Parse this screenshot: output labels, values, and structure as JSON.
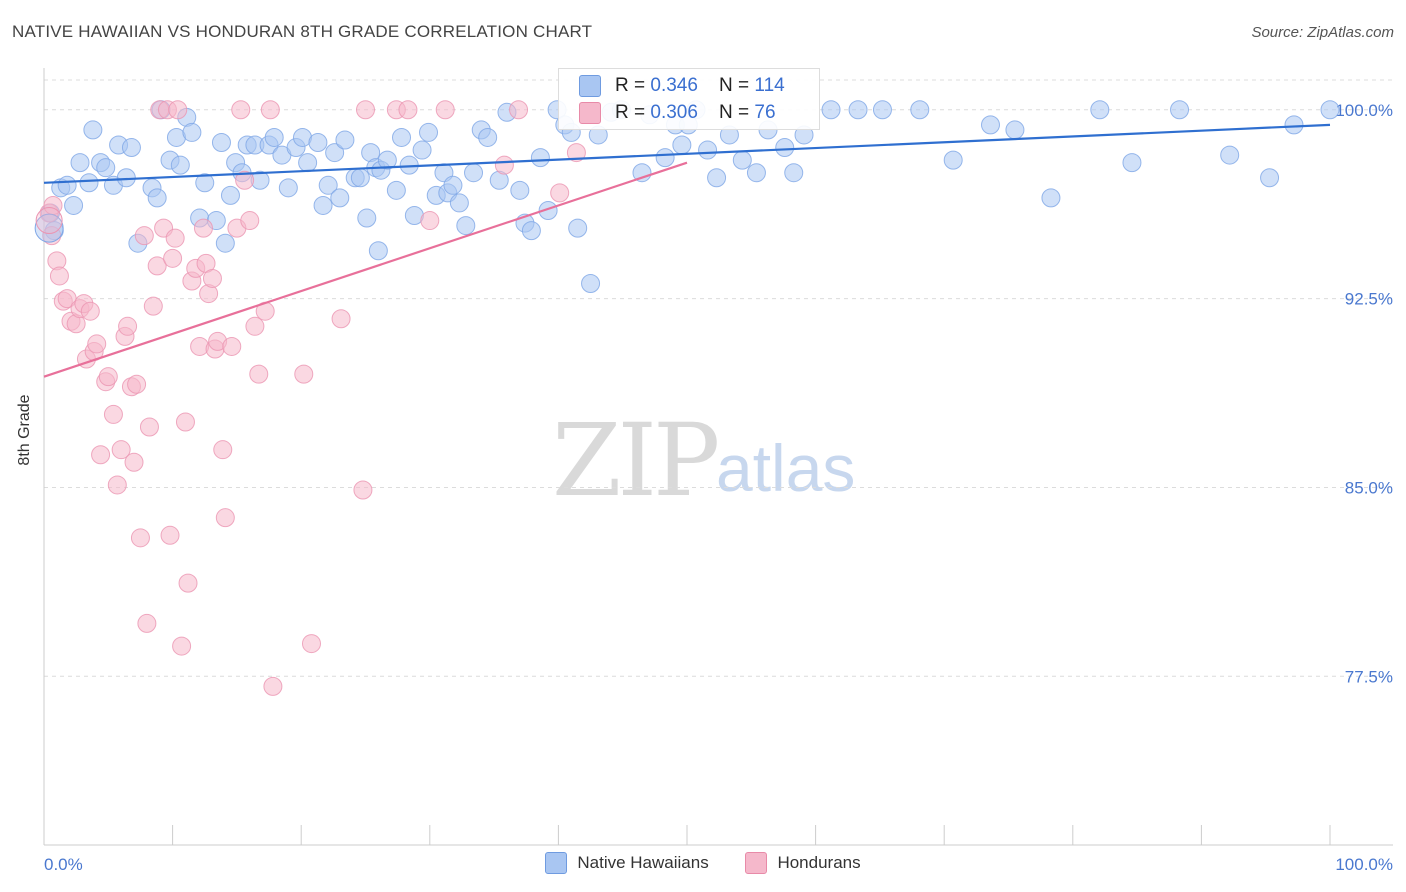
{
  "title": "NATIVE HAWAIIAN VS HONDURAN 8TH GRADE CORRELATION CHART",
  "source": "Source: ZipAtlas.com",
  "watermark": {
    "zip": "ZIP",
    "atlas": "atlas"
  },
  "stats": [
    {
      "r_label": "R = ",
      "r_value": "0.346",
      "n_label": "N = ",
      "n_value": "114",
      "color": "#a9c6f2"
    },
    {
      "r_label": "R = ",
      "r_value": "0.306",
      "n_label": "N = ",
      "n_value": "76",
      "color": "#f5b8cb"
    }
  ],
  "legend": [
    {
      "label": "Native Hawaiians",
      "color": "#a9c6f2"
    },
    {
      "label": "Hondurans",
      "color": "#f5b8cb"
    }
  ],
  "colors": {
    "blue_point": "#a9c6f2",
    "blue_line": "#2f6fd0",
    "pink_point": "#f5b8cb",
    "pink_line": "#e8709a",
    "axis_text": "#4a78cf"
  },
  "chart_data": {
    "type": "scatter",
    "title": "NATIVE HAWAIIAN VS HONDURAN 8TH GRADE CORRELATION CHART",
    "xlabel": "",
    "ylabel": "8th Grade",
    "xlim": [
      0,
      100
    ],
    "ylim": [
      70.8,
      101.5
    ],
    "x_tick_labels": [
      "0.0%",
      "100.0%"
    ],
    "y_ticks": [
      77.5,
      85.0,
      92.5,
      100.0
    ],
    "y_tick_labels": [
      "77.5%",
      "85.0%",
      "92.5%",
      "100.0%"
    ],
    "grid": "horizontal dashed",
    "series": [
      {
        "name": "Native Hawaiians",
        "trend": {
          "x": [
            0,
            100
          ],
          "y": [
            97.1,
            99.4
          ]
        },
        "points": [
          [
            0.5,
            95.9
          ],
          [
            0.8,
            95.2
          ],
          [
            1.3,
            96.9
          ],
          [
            1.8,
            97.0
          ],
          [
            2.3,
            96.2
          ],
          [
            2.8,
            97.9
          ],
          [
            3.5,
            97.1
          ],
          [
            3.8,
            99.2
          ],
          [
            4.4,
            97.9
          ],
          [
            4.8,
            97.7
          ],
          [
            5.4,
            97.0
          ],
          [
            5.8,
            98.6
          ],
          [
            6.4,
            97.3
          ],
          [
            6.8,
            98.5
          ],
          [
            7.3,
            94.7
          ],
          [
            8.4,
            96.9
          ],
          [
            8.8,
            96.5
          ],
          [
            9.1,
            100.0
          ],
          [
            9.8,
            98.0
          ],
          [
            10.3,
            98.9
          ],
          [
            10.6,
            97.8
          ],
          [
            11.1,
            99.7
          ],
          [
            11.5,
            99.1
          ],
          [
            12.1,
            95.7
          ],
          [
            12.5,
            97.1
          ],
          [
            13.4,
            95.6
          ],
          [
            13.8,
            98.7
          ],
          [
            14.1,
            94.7
          ],
          [
            14.5,
            96.6
          ],
          [
            14.9,
            97.9
          ],
          [
            15.4,
            97.5
          ],
          [
            15.8,
            98.6
          ],
          [
            16.4,
            98.6
          ],
          [
            16.8,
            97.2
          ],
          [
            17.5,
            98.6
          ],
          [
            17.9,
            98.9
          ],
          [
            18.5,
            98.2
          ],
          [
            19.0,
            96.9
          ],
          [
            19.6,
            98.5
          ],
          [
            20.1,
            98.9
          ],
          [
            20.5,
            97.9
          ],
          [
            21.3,
            98.7
          ],
          [
            21.7,
            96.2
          ],
          [
            22.1,
            97.0
          ],
          [
            22.6,
            98.3
          ],
          [
            23.0,
            96.5
          ],
          [
            23.4,
            98.8
          ],
          [
            24.2,
            97.3
          ],
          [
            24.6,
            97.3
          ],
          [
            25.1,
            95.7
          ],
          [
            25.4,
            98.3
          ],
          [
            25.8,
            97.7
          ],
          [
            26.2,
            97.6
          ],
          [
            26.7,
            98.0
          ],
          [
            27.4,
            96.8
          ],
          [
            27.8,
            98.9
          ],
          [
            28.4,
            97.8
          ],
          [
            28.8,
            95.8
          ],
          [
            29.4,
            98.4
          ],
          [
            29.9,
            99.1
          ],
          [
            30.5,
            96.6
          ],
          [
            31.1,
            97.5
          ],
          [
            31.4,
            96.7
          ],
          [
            31.8,
            97.0
          ],
          [
            32.3,
            96.3
          ],
          [
            32.8,
            95.4
          ],
          [
            33.4,
            97.5
          ],
          [
            34.0,
            99.2
          ],
          [
            34.5,
            98.9
          ],
          [
            35.4,
            97.2
          ],
          [
            36.0,
            99.9
          ],
          [
            37.0,
            96.8
          ],
          [
            37.4,
            95.5
          ],
          [
            37.9,
            95.2
          ],
          [
            38.6,
            98.1
          ],
          [
            39.2,
            96.0
          ],
          [
            39.9,
            100.0
          ],
          [
            40.5,
            99.4
          ],
          [
            41.0,
            99.1
          ],
          [
            41.5,
            95.3
          ],
          [
            43.1,
            99.0
          ],
          [
            44.1,
            99.9
          ],
          [
            44.9,
            100.0
          ],
          [
            46.5,
            97.5
          ],
          [
            47.1,
            99.8
          ],
          [
            48.3,
            98.1
          ],
          [
            49.1,
            99.4
          ],
          [
            49.6,
            98.6
          ],
          [
            50.1,
            99.4
          ],
          [
            50.7,
            100.0
          ],
          [
            51.6,
            98.4
          ],
          [
            52.3,
            97.3
          ],
          [
            53.3,
            99.0
          ],
          [
            54.3,
            98.0
          ],
          [
            55.4,
            97.5
          ],
          [
            56.3,
            99.2
          ],
          [
            57.6,
            98.5
          ],
          [
            58.3,
            97.5
          ],
          [
            59.1,
            99.0
          ],
          [
            61.2,
            100.0
          ],
          [
            63.3,
            100.0
          ],
          [
            65.2,
            100.0
          ],
          [
            68.1,
            100.0
          ],
          [
            70.7,
            98.0
          ],
          [
            73.6,
            99.4
          ],
          [
            75.5,
            99.2
          ],
          [
            78.3,
            96.5
          ],
          [
            82.1,
            100.0
          ],
          [
            84.6,
            97.9
          ],
          [
            88.3,
            100.0
          ],
          [
            92.2,
            98.2
          ],
          [
            95.3,
            97.3
          ],
          [
            97.2,
            99.4
          ],
          [
            100.0,
            100.0
          ],
          [
            42.5,
            93.1
          ],
          [
            26.0,
            94.4
          ]
        ]
      },
      {
        "name": "Hondurans",
        "trend": {
          "x": [
            0,
            50
          ],
          "y": [
            89.4,
            97.9
          ]
        },
        "points": [
          [
            0.4,
            95.9
          ],
          [
            0.6,
            95.0
          ],
          [
            0.7,
            96.2
          ],
          [
            1.0,
            94.0
          ],
          [
            1.2,
            93.4
          ],
          [
            1.5,
            92.4
          ],
          [
            1.8,
            92.5
          ],
          [
            2.1,
            91.6
          ],
          [
            2.5,
            91.5
          ],
          [
            2.8,
            92.1
          ],
          [
            3.1,
            92.3
          ],
          [
            3.3,
            90.1
          ],
          [
            3.6,
            92.0
          ],
          [
            3.9,
            90.4
          ],
          [
            4.1,
            90.7
          ],
          [
            4.4,
            86.3
          ],
          [
            4.8,
            89.2
          ],
          [
            5.0,
            89.4
          ],
          [
            5.4,
            87.9
          ],
          [
            5.7,
            85.1
          ],
          [
            6.0,
            86.5
          ],
          [
            6.3,
            91.0
          ],
          [
            6.5,
            91.4
          ],
          [
            6.8,
            89.0
          ],
          [
            7.0,
            86.0
          ],
          [
            7.2,
            89.1
          ],
          [
            7.5,
            83.0
          ],
          [
            7.8,
            95.0
          ],
          [
            8.0,
            79.6
          ],
          [
            8.2,
            87.4
          ],
          [
            8.5,
            92.2
          ],
          [
            8.8,
            93.8
          ],
          [
            9.0,
            100.0
          ],
          [
            9.3,
            95.3
          ],
          [
            9.6,
            100.0
          ],
          [
            9.8,
            83.1
          ],
          [
            10.0,
            94.1
          ],
          [
            10.2,
            94.9
          ],
          [
            10.4,
            100.0
          ],
          [
            10.7,
            78.7
          ],
          [
            11.0,
            87.6
          ],
          [
            11.2,
            81.2
          ],
          [
            11.5,
            93.2
          ],
          [
            11.8,
            93.7
          ],
          [
            12.1,
            90.6
          ],
          [
            12.4,
            95.3
          ],
          [
            12.6,
            93.9
          ],
          [
            12.8,
            92.7
          ],
          [
            13.1,
            93.3
          ],
          [
            13.3,
            90.5
          ],
          [
            13.5,
            90.8
          ],
          [
            13.9,
            86.5
          ],
          [
            14.1,
            83.8
          ],
          [
            14.6,
            90.6
          ],
          [
            15.0,
            95.3
          ],
          [
            15.3,
            100.0
          ],
          [
            15.6,
            97.2
          ],
          [
            16.0,
            95.6
          ],
          [
            16.4,
            91.4
          ],
          [
            16.7,
            89.5
          ],
          [
            17.2,
            92.0
          ],
          [
            17.6,
            100.0
          ],
          [
            17.8,
            77.1
          ],
          [
            20.2,
            89.5
          ],
          [
            20.8,
            78.8
          ],
          [
            23.1,
            91.7
          ],
          [
            24.8,
            84.9
          ],
          [
            25.0,
            100.0
          ],
          [
            27.4,
            100.0
          ],
          [
            28.3,
            100.0
          ],
          [
            30.0,
            95.6
          ],
          [
            31.2,
            100.0
          ],
          [
            35.8,
            97.8
          ],
          [
            36.9,
            100.0
          ],
          [
            40.1,
            96.7
          ],
          [
            41.4,
            98.3
          ]
        ]
      }
    ]
  }
}
